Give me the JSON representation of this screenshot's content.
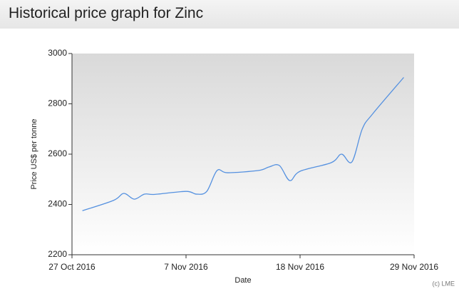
{
  "chart_data": {
    "type": "line",
    "title": "Historical price graph for Zinc",
    "x_label": "Date",
    "y_label": "Price US$ per tonne",
    "credit": "(c) LME",
    "x": [
      "2016-10-28",
      "2016-10-31",
      "2016-11-01",
      "2016-11-02",
      "2016-11-03",
      "2016-11-04",
      "2016-11-07",
      "2016-11-08",
      "2016-11-09",
      "2016-11-10",
      "2016-11-11",
      "2016-11-14",
      "2016-11-15",
      "2016-11-16",
      "2016-11-17",
      "2016-11-18",
      "2016-11-21",
      "2016-11-22",
      "2016-11-23",
      "2016-11-24",
      "2016-11-25",
      "2016-11-28"
    ],
    "series": [
      {
        "name": "Zinc",
        "color": "#5591e0",
        "values": [
          2375,
          2416,
          2444,
          2421,
          2441,
          2440,
          2452,
          2441,
          2452,
          2535,
          2526,
          2535,
          2549,
          2555,
          2495,
          2532,
          2566,
          2600,
          2569,
          2700,
          2760,
          2905
        ]
      }
    ],
    "xlim": [
      "2016-10-27",
      "2016-11-29"
    ],
    "xticks": [
      {
        "value": "2016-10-27",
        "label": "27 Oct 2016"
      },
      {
        "value": "2016-11-07",
        "label": "7 Nov 2016"
      },
      {
        "value": "2016-11-18",
        "label": "18 Nov 2016"
      },
      {
        "value": "2016-11-29",
        "label": "29 Nov 2016"
      }
    ],
    "ylim": [
      2200,
      3000
    ],
    "yticks": [
      2200,
      2400,
      2600,
      2800,
      3000
    ]
  }
}
